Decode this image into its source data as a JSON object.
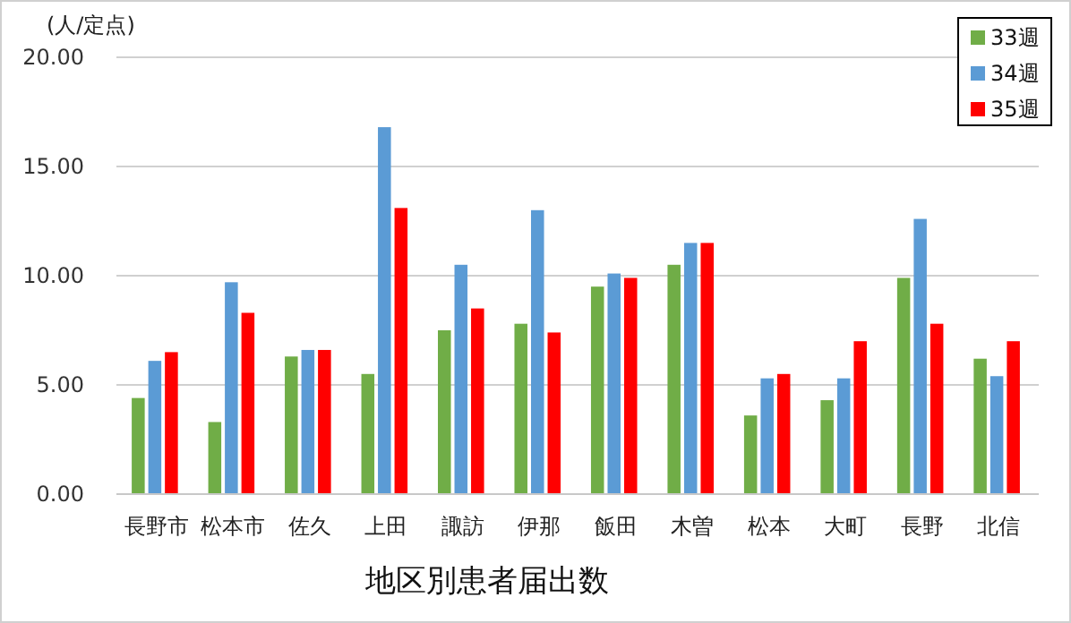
{
  "chart_data": {
    "type": "bar",
    "title": "地区別患者届出数",
    "ylabel": "(人/定点)",
    "categories": [
      "長野市",
      "松本市",
      "佐久",
      "上田",
      "諏訪",
      "伊那",
      "飯田",
      "木曽",
      "松本",
      "大町",
      "長野",
      "北信"
    ],
    "series": [
      {
        "name": "33週",
        "color": "#70ad47",
        "values": [
          4.4,
          3.3,
          6.3,
          5.5,
          7.5,
          7.8,
          9.5,
          10.5,
          3.6,
          4.3,
          9.9,
          6.2
        ]
      },
      {
        "name": "34週",
        "color": "#5b9bd5",
        "values": [
          6.1,
          9.7,
          6.6,
          16.8,
          10.5,
          13.0,
          10.1,
          11.5,
          5.3,
          5.3,
          12.6,
          5.4
        ]
      },
      {
        "name": "35週",
        "color": "#ff0000",
        "values": [
          6.5,
          8.3,
          6.6,
          13.1,
          8.5,
          7.4,
          9.9,
          11.5,
          5.5,
          7.0,
          7.8,
          7.0
        ]
      }
    ],
    "ylim": [
      0,
      20
    ],
    "yticks": [
      {
        "value": 0,
        "label": "0.00"
      },
      {
        "value": 5,
        "label": "5.00"
      },
      {
        "value": 10,
        "label": "10.00"
      },
      {
        "value": 15,
        "label": "15.00"
      },
      {
        "value": 20,
        "label": "20.00"
      }
    ],
    "grid": "y",
    "legend": "top right"
  }
}
